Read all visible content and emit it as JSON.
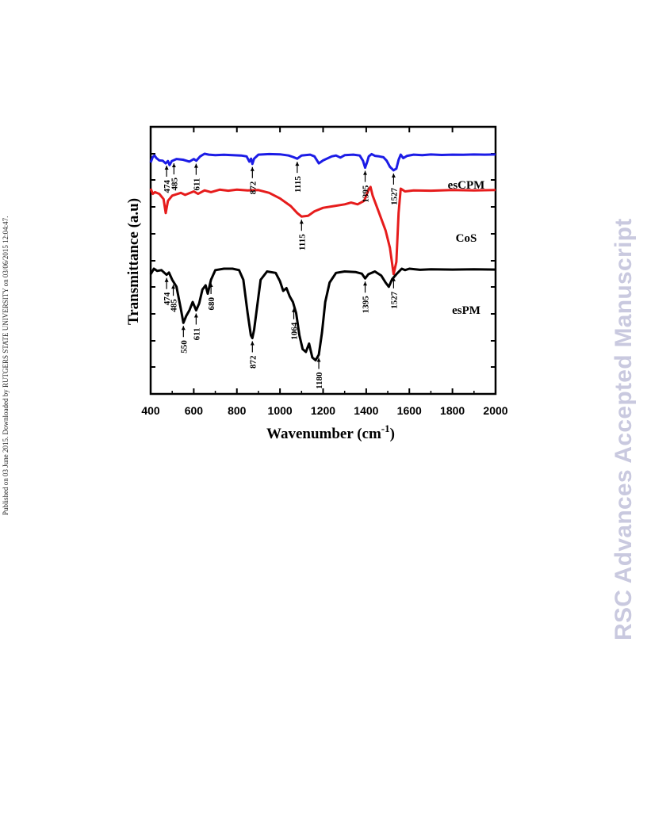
{
  "side_note": "Published on 03 June 2015. Downloaded by RUTGERS STATE UNIVERSITY on 03/06/2015 12:04:47.",
  "watermark": "RSC Advances Accepted Manuscript",
  "chart_data": {
    "type": "line",
    "xlabel": "Wavenumber (cm",
    "xlabel_sup": "-1",
    "xlabel_end": ")",
    "ylabel": "Transmittance (a.u)",
    "xlim": [
      400,
      2000
    ],
    "x_ticks": [
      400,
      600,
      800,
      1000,
      1200,
      1400,
      1600,
      1800,
      2000
    ],
    "y_units": "arbitrary (stacked offsets)",
    "grid": false,
    "series": [
      {
        "name": "esCPM",
        "color": "#1c1ce6",
        "points": [
          [
            400,
            0.5
          ],
          [
            410,
            0.82
          ],
          [
            418,
            0.9
          ],
          [
            426,
            0.76
          ],
          [
            440,
            0.62
          ],
          [
            456,
            0.6
          ],
          [
            470,
            0.45
          ],
          [
            480,
            0.58
          ],
          [
            488,
            0.35
          ],
          [
            498,
            0.58
          ],
          [
            520,
            0.7
          ],
          [
            550,
            0.66
          ],
          [
            580,
            0.55
          ],
          [
            600,
            0.7
          ],
          [
            612,
            0.6
          ],
          [
            630,
            0.85
          ],
          [
            650,
            1.0
          ],
          [
            670,
            0.95
          ],
          [
            700,
            0.92
          ],
          [
            740,
            0.94
          ],
          [
            780,
            0.92
          ],
          [
            820,
            0.9
          ],
          [
            845,
            0.85
          ],
          [
            858,
            0.55
          ],
          [
            866,
            0.72
          ],
          [
            872,
            0.42
          ],
          [
            880,
            0.72
          ],
          [
            900,
            0.95
          ],
          [
            950,
            0.98
          ],
          [
            1000,
            0.97
          ],
          [
            1040,
            0.9
          ],
          [
            1060,
            0.82
          ],
          [
            1080,
            0.72
          ],
          [
            1100,
            0.9
          ],
          [
            1140,
            0.95
          ],
          [
            1160,
            0.85
          ],
          [
            1180,
            0.45
          ],
          [
            1200,
            0.62
          ],
          [
            1240,
            0.85
          ],
          [
            1260,
            0.9
          ],
          [
            1280,
            0.78
          ],
          [
            1300,
            0.92
          ],
          [
            1340,
            0.95
          ],
          [
            1370,
            0.9
          ],
          [
            1385,
            0.6
          ],
          [
            1395,
            0.2
          ],
          [
            1405,
            0.55
          ],
          [
            1412,
            0.85
          ],
          [
            1425,
            0.98
          ],
          [
            1440,
            0.88
          ],
          [
            1460,
            0.85
          ],
          [
            1480,
            0.8
          ],
          [
            1495,
            0.6
          ],
          [
            1510,
            0.25
          ],
          [
            1527,
            0.05
          ],
          [
            1540,
            0.15
          ],
          [
            1550,
            0.65
          ],
          [
            1560,
            0.95
          ],
          [
            1572,
            0.75
          ],
          [
            1590,
            0.88
          ],
          [
            1620,
            0.95
          ],
          [
            1660,
            0.92
          ],
          [
            1700,
            0.96
          ],
          [
            1750,
            0.93
          ],
          [
            1800,
            0.95
          ],
          [
            1850,
            0.94
          ],
          [
            1900,
            0.96
          ],
          [
            1950,
            0.95
          ],
          [
            2000,
            0.96
          ]
        ]
      },
      {
        "name": "CoS",
        "color": "#e61c1c",
        "points": [
          [
            400,
            1.0
          ],
          [
            410,
            0.85
          ],
          [
            420,
            0.9
          ],
          [
            440,
            0.85
          ],
          [
            460,
            0.7
          ],
          [
            470,
            0.3
          ],
          [
            480,
            0.65
          ],
          [
            500,
            0.8
          ],
          [
            540,
            0.88
          ],
          [
            560,
            0.82
          ],
          [
            600,
            0.92
          ],
          [
            620,
            0.85
          ],
          [
            650,
            0.95
          ],
          [
            680,
            0.9
          ],
          [
            720,
            0.97
          ],
          [
            760,
            0.94
          ],
          [
            800,
            0.97
          ],
          [
            850,
            0.95
          ],
          [
            900,
            0.96
          ],
          [
            950,
            0.88
          ],
          [
            1000,
            0.72
          ],
          [
            1050,
            0.5
          ],
          [
            1080,
            0.3
          ],
          [
            1100,
            0.2
          ],
          [
            1130,
            0.22
          ],
          [
            1160,
            0.35
          ],
          [
            1200,
            0.45
          ],
          [
            1250,
            0.5
          ],
          [
            1300,
            0.55
          ],
          [
            1330,
            0.6
          ],
          [
            1360,
            0.55
          ],
          [
            1390,
            0.65
          ],
          [
            1410,
            0.95
          ],
          [
            1420,
            1.05
          ],
          [
            1430,
            0.8
          ],
          [
            1460,
            0.3
          ],
          [
            1490,
            -0.2
          ],
          [
            1510,
            -0.7
          ],
          [
            1527,
            -1.45
          ],
          [
            1540,
            -1.1
          ],
          [
            1550,
            0.3
          ],
          [
            1560,
            1.0
          ],
          [
            1580,
            0.92
          ],
          [
            1620,
            0.95
          ],
          [
            1700,
            0.94
          ],
          [
            1800,
            0.96
          ],
          [
            1900,
            0.95
          ],
          [
            2000,
            0.96
          ]
        ]
      },
      {
        "name": "esPM",
        "color": "#000000",
        "points": [
          [
            400,
            0.8
          ],
          [
            415,
            1.0
          ],
          [
            430,
            0.92
          ],
          [
            450,
            0.95
          ],
          [
            474,
            0.78
          ],
          [
            485,
            0.86
          ],
          [
            500,
            0.6
          ],
          [
            520,
            0.35
          ],
          [
            540,
            -0.45
          ],
          [
            552,
            -0.95
          ],
          [
            565,
            -0.7
          ],
          [
            580,
            -0.5
          ],
          [
            595,
            -0.2
          ],
          [
            611,
            -0.5
          ],
          [
            625,
            -0.25
          ],
          [
            640,
            0.25
          ],
          [
            655,
            0.4
          ],
          [
            665,
            0.1
          ],
          [
            680,
            0.6
          ],
          [
            700,
            0.95
          ],
          [
            740,
            1.0
          ],
          [
            780,
            1.0
          ],
          [
            810,
            0.95
          ],
          [
            830,
            0.6
          ],
          [
            850,
            -0.6
          ],
          [
            865,
            -1.4
          ],
          [
            872,
            -1.5
          ],
          [
            880,
            -1.2
          ],
          [
            895,
            -0.3
          ],
          [
            910,
            0.6
          ],
          [
            940,
            0.9
          ],
          [
            980,
            0.85
          ],
          [
            1000,
            0.55
          ],
          [
            1015,
            0.2
          ],
          [
            1030,
            0.3
          ],
          [
            1045,
            0.0
          ],
          [
            1060,
            -0.2
          ],
          [
            1075,
            -0.6
          ],
          [
            1090,
            -1.4
          ],
          [
            1105,
            -1.9
          ],
          [
            1120,
            -2.0
          ],
          [
            1135,
            -1.7
          ],
          [
            1150,
            -2.2
          ],
          [
            1165,
            -2.3
          ],
          [
            1180,
            -2.1
          ],
          [
            1195,
            -1.3
          ],
          [
            1210,
            -0.2
          ],
          [
            1230,
            0.5
          ],
          [
            1260,
            0.85
          ],
          [
            1300,
            0.9
          ],
          [
            1350,
            0.88
          ],
          [
            1380,
            0.82
          ],
          [
            1395,
            0.65
          ],
          [
            1410,
            0.8
          ],
          [
            1440,
            0.9
          ],
          [
            1470,
            0.75
          ],
          [
            1490,
            0.5
          ],
          [
            1505,
            0.35
          ],
          [
            1520,
            0.62
          ],
          [
            1540,
            0.8
          ],
          [
            1565,
            1.0
          ],
          [
            1580,
            0.95
          ],
          [
            1600,
            1.0
          ],
          [
            1650,
            0.96
          ],
          [
            1700,
            0.98
          ],
          [
            1800,
            0.97
          ],
          [
            1900,
            0.98
          ],
          [
            2000,
            0.97
          ]
        ]
      }
    ],
    "annotations": [
      {
        "series": "esCPM",
        "text": "474",
        "x": 474
      },
      {
        "series": "esCPM",
        "text": "485",
        "x": 508
      },
      {
        "series": "esCPM",
        "text": "611",
        "x": 611
      },
      {
        "series": "esCPM",
        "text": "872",
        "x": 872
      },
      {
        "series": "esCPM",
        "text": "1115",
        "x": 1080
      },
      {
        "series": "esCPM",
        "text": "1395",
        "x": 1395
      },
      {
        "series": "esCPM",
        "text": "1527",
        "x": 1527
      },
      {
        "series": "CoS",
        "text": "1115",
        "x": 1100
      },
      {
        "series": "CoS",
        "text": "1527",
        "x": 1527
      },
      {
        "series": "esPM",
        "text": "474",
        "x": 474
      },
      {
        "series": "esPM",
        "text": "485",
        "x": 505
      },
      {
        "series": "esPM",
        "text": "550",
        "x": 552
      },
      {
        "series": "esPM",
        "text": "611",
        "x": 611
      },
      {
        "series": "esPM",
        "text": "680",
        "x": 680
      },
      {
        "series": "esPM",
        "text": "872",
        "x": 872
      },
      {
        "series": "esPM",
        "text": "1064",
        "x": 1064
      },
      {
        "series": "esPM",
        "text": "1180",
        "x": 1180
      },
      {
        "series": "esPM",
        "text": "1395",
        "x": 1395
      }
    ]
  }
}
